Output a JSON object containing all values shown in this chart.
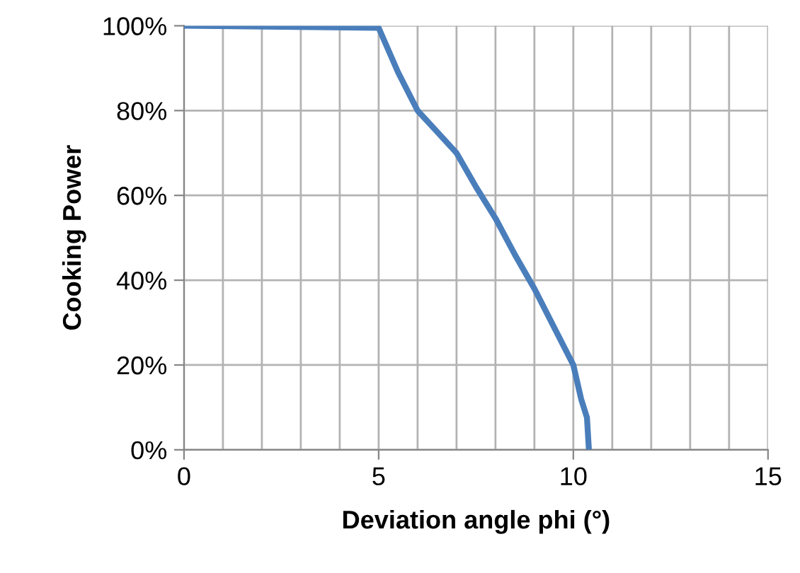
{
  "chart_data": {
    "type": "line",
    "xlabel": "Deviation angle phi (°)",
    "ylabel": "Cooking Power",
    "series": [
      {
        "color": "#4a7ebb",
        "x": [
          0,
          5,
          5.5,
          6,
          6.5,
          7,
          7.5,
          8,
          8.5,
          9,
          9.5,
          10,
          10.2,
          10.35,
          10.4
        ],
        "values": [
          100,
          99.5,
          89,
          80,
          75,
          70,
          62,
          54.6,
          46,
          38,
          29,
          20,
          12,
          7.6,
          0
        ]
      }
    ],
    "xlim": [
      0,
      15
    ],
    "ylim": [
      0,
      100
    ],
    "xticks": [
      0,
      {
        "value": 1,
        "label": null
      },
      {
        "value": 2,
        "label": null
      },
      {
        "value": 3,
        "label": null
      },
      {
        "value": 4,
        "label": null
      },
      5,
      {
        "value": 6,
        "label": null
      },
      {
        "value": 7,
        "label": null
      },
      {
        "value": 8,
        "label": null
      },
      {
        "value": 9,
        "label": null
      },
      10,
      {
        "value": 11,
        "label": null
      },
      {
        "value": 12,
        "label": null
      },
      {
        "value": 13,
        "label": null
      },
      {
        "value": 14,
        "label": null
      },
      15
    ],
    "yticks": [
      {
        "value": 0,
        "label": "0%"
      },
      {
        "value": 20,
        "label": "20%"
      },
      {
        "value": 40,
        "label": "40%"
      },
      {
        "value": 60,
        "label": "60%"
      },
      {
        "value": 80,
        "label": "80%"
      },
      {
        "value": 100,
        "label": "100%"
      }
    ],
    "grid": true,
    "legend": false,
    "marker": "none",
    "line_style": "solid"
  }
}
